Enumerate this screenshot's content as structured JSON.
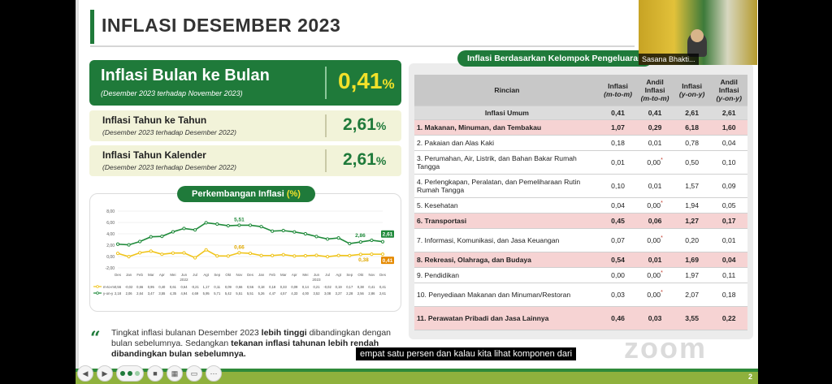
{
  "slide": {
    "title": "INFLASI DESEMBER 2023",
    "page_number": "2"
  },
  "mom": {
    "label": "Inflasi Bulan ke Bulan",
    "sub": "(Desember 2023 terhadap November 2023)",
    "value": "0,41",
    "unit": "%"
  },
  "yoy": {
    "label": "Inflasi Tahun ke Tahun",
    "sub": "(Desember 2023 terhadap Desember 2022)",
    "value": "2,61",
    "unit": "%"
  },
  "ytd": {
    "label": "Inflasi Tahun Kalender",
    "sub": "(Desember 2023 terhadap Desember 2022)",
    "value": "2,61",
    "unit": "%"
  },
  "chart_header": {
    "title": "Perkembangan Inflasi",
    "pct": "(%)"
  },
  "chart_data": {
    "type": "line",
    "categories": [
      "Des",
      "Jan",
      "Feb",
      "Mar",
      "Apr",
      "Mei",
      "Jun",
      "Jul",
      "Agt",
      "Sep",
      "Okt",
      "Nov",
      "Des",
      "Jan",
      "Feb",
      "Mar",
      "Apr",
      "Mei",
      "Jun",
      "Jul",
      "Agt",
      "Sep",
      "Okt",
      "Nov",
      "Des"
    ],
    "year_labels": [
      "2022",
      "2023"
    ],
    "yticks": [
      "8,00",
      "6,00",
      "4,00",
      "2,00",
      "0,00",
      "-2,00"
    ],
    "ylim": [
      -2,
      8
    ],
    "series": [
      {
        "name": "m-to-m",
        "color": "#f0c419",
        "values": [
          0.56,
          -0.02,
          0.66,
          0.95,
          0.4,
          0.61,
          0.64,
          -0.21,
          1.17,
          0.11,
          0.09,
          0.66,
          0.56,
          0.18,
          0.18,
          0.33,
          0.09,
          0.14,
          0.21,
          -0.02,
          0.19,
          0.17,
          0.38,
          0.41,
          0.41
        ],
        "labels": [
          "0,56",
          "-0,02",
          "0,66",
          "0,95",
          "0,40",
          "0,61",
          "0,64",
          "-0,21",
          "1,17",
          "0,11",
          "0,09",
          "0,66",
          "0,56",
          "0,18",
          "0,18",
          "0,33",
          "0,09",
          "0,14",
          "0,21",
          "-0,02",
          "0,19",
          "0,17",
          "0,38",
          "0,41",
          "0,41"
        ]
      },
      {
        "name": "y-on-y",
        "color": "#1f8a3a",
        "values": [
          2.18,
          2.06,
          2.64,
          3.47,
          3.55,
          4.35,
          4.94,
          4.69,
          5.95,
          5.71,
          5.42,
          5.51,
          5.51,
          5.26,
          4.47,
          4.57,
          4.33,
          4.0,
          3.52,
          3.08,
          3.27,
          2.28,
          2.56,
          2.86,
          2.61
        ],
        "labels": [
          "2,18",
          "2,06",
          "2,64",
          "3,47",
          "3,55",
          "4,35",
          "4,94",
          "4,69",
          "5,95",
          "5,71",
          "5,42",
          "5,51",
          "5,51",
          "5,26",
          "4,47",
          "4,57",
          "4,33",
          "4,00",
          "3,52",
          "3,08",
          "3,27",
          "2,28",
          "2,56",
          "2,86",
          "2,61"
        ]
      }
    ],
    "annotations": {
      "yoy_peak": "5,51",
      "mom_mid": "0,66",
      "yoy_nov": "2,86",
      "mom_nov": "0,38",
      "yoy_last": "2,61",
      "mom_last": "0,41"
    }
  },
  "quote": {
    "p1": "Tingkat inflasi bulanan Desember 2023",
    "b1": "lebih tinggi",
    "p2": "dibandingkan dengan bulan sebelumnya. Sedangkan",
    "b2": "tekanan inflasi tahunan lebih rendah dibandingkan bulan sebelumnya."
  },
  "table": {
    "pill": "Inflasi Berdasarkan Kelompok Pengeluaran",
    "headers": {
      "rincian": "Rincian",
      "c1": "Inflasi",
      "c1s": "(m-to-m)",
      "c2": "Andil Inflasi",
      "c2s": "(m-to-m)",
      "c3": "Inflasi",
      "c3s": "(y-on-y)",
      "c4": "Andil Inflasi",
      "c4s": "(y-on-y)"
    },
    "general": {
      "name": "Inflasi Umum",
      "v1": "0,41",
      "v2": "0,41",
      "v3": "2,61",
      "v4": "2,61"
    },
    "rows": [
      {
        "name": "1. Makanan, Minuman, dan Tembakau",
        "v1": "1,07",
        "v2": "0,29",
        "v3": "6,18",
        "v4": "1,60",
        "hl": true
      },
      {
        "name": "2. Pakaian dan Alas Kaki",
        "v1": "0,18",
        "v2": "0,01",
        "v3": "0,78",
        "v4": "0,04"
      },
      {
        "name": "3. Perumahan, Air, Listrik, dan Bahan Bakar Rumah Tangga",
        "v1": "0,01",
        "v2": "0,00",
        "star": true,
        "v3": "0,50",
        "v4": "0,10"
      },
      {
        "name": "4. Perlengkapan, Peralatan, dan Pemeliharaan Rutin Rumah Tangga",
        "v1": "0,10",
        "v2": "0,01",
        "v3": "1,57",
        "v4": "0,09"
      },
      {
        "name": "5. Kesehatan",
        "v1": "0,04",
        "v2": "0,00",
        "star": true,
        "v3": "1,94",
        "v4": "0,05"
      },
      {
        "name": "6. Transportasi",
        "v1": "0,45",
        "v2": "0,06",
        "v3": "1,27",
        "v4": "0,17",
        "hl": true
      },
      {
        "name": "7. Informasi, Komunikasi, dan Jasa Keuangan",
        "v1": "0,07",
        "v2": "0,00",
        "star": true,
        "v3": "0,20",
        "v4": "0,01"
      },
      {
        "name": "8. Rekreasi, Olahraga, dan Budaya",
        "v1": "0,54",
        "v2": "0,01",
        "v3": "1,69",
        "v4": "0,04",
        "hl": true
      },
      {
        "name": "9. Pendidikan",
        "v1": "0,00",
        "v2": "0,00",
        "star": true,
        "v3": "1,97",
        "v4": "0,11"
      },
      {
        "name": "10. Penyediaan Makanan dan Minuman/Restoran",
        "v1": "0,03",
        "v2": "0,00",
        "star": true,
        "v3": "2,07",
        "v4": "0,18"
      },
      {
        "name": "11. Perawatan Pribadi dan Jasa Lainnya",
        "v1": "0,46",
        "v2": "0,03",
        "v3": "3,55",
        "v4": "0,22",
        "hl": true
      }
    ],
    "star_symbol": "*"
  },
  "zoom": {
    "watermark": "zoom",
    "participant_name": "Sasana Bhakti...",
    "caption": "empat satu persen dan kalau kita lihat komponen dari"
  },
  "toolbar": {
    "icons": [
      "prev-icon",
      "play-icon",
      "slide-dots",
      "stop-icon",
      "grid-icon",
      "camera-icon",
      "more-icon"
    ]
  },
  "colors": {
    "brand_green": "#1f7a3a",
    "accent_yellow": "#f2e12a",
    "highlight_pink": "#f6d3d3"
  }
}
